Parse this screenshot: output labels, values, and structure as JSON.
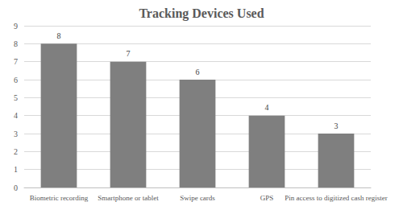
{
  "chart_data": {
    "type": "bar",
    "title": "Tracking Devices Used",
    "categories": [
      "Biometric recording",
      "Smartphone or tablet",
      "Swipe cards",
      "GPS",
      "Pin access to digitized cash register"
    ],
    "values": [
      8,
      7,
      6,
      4,
      3
    ],
    "color": "#7f7f7f",
    "ylim": [
      0,
      9
    ],
    "yticks": [
      0,
      1,
      2,
      3,
      4,
      5,
      6,
      7,
      8,
      9
    ],
    "grid": true,
    "data_labels": true
  }
}
